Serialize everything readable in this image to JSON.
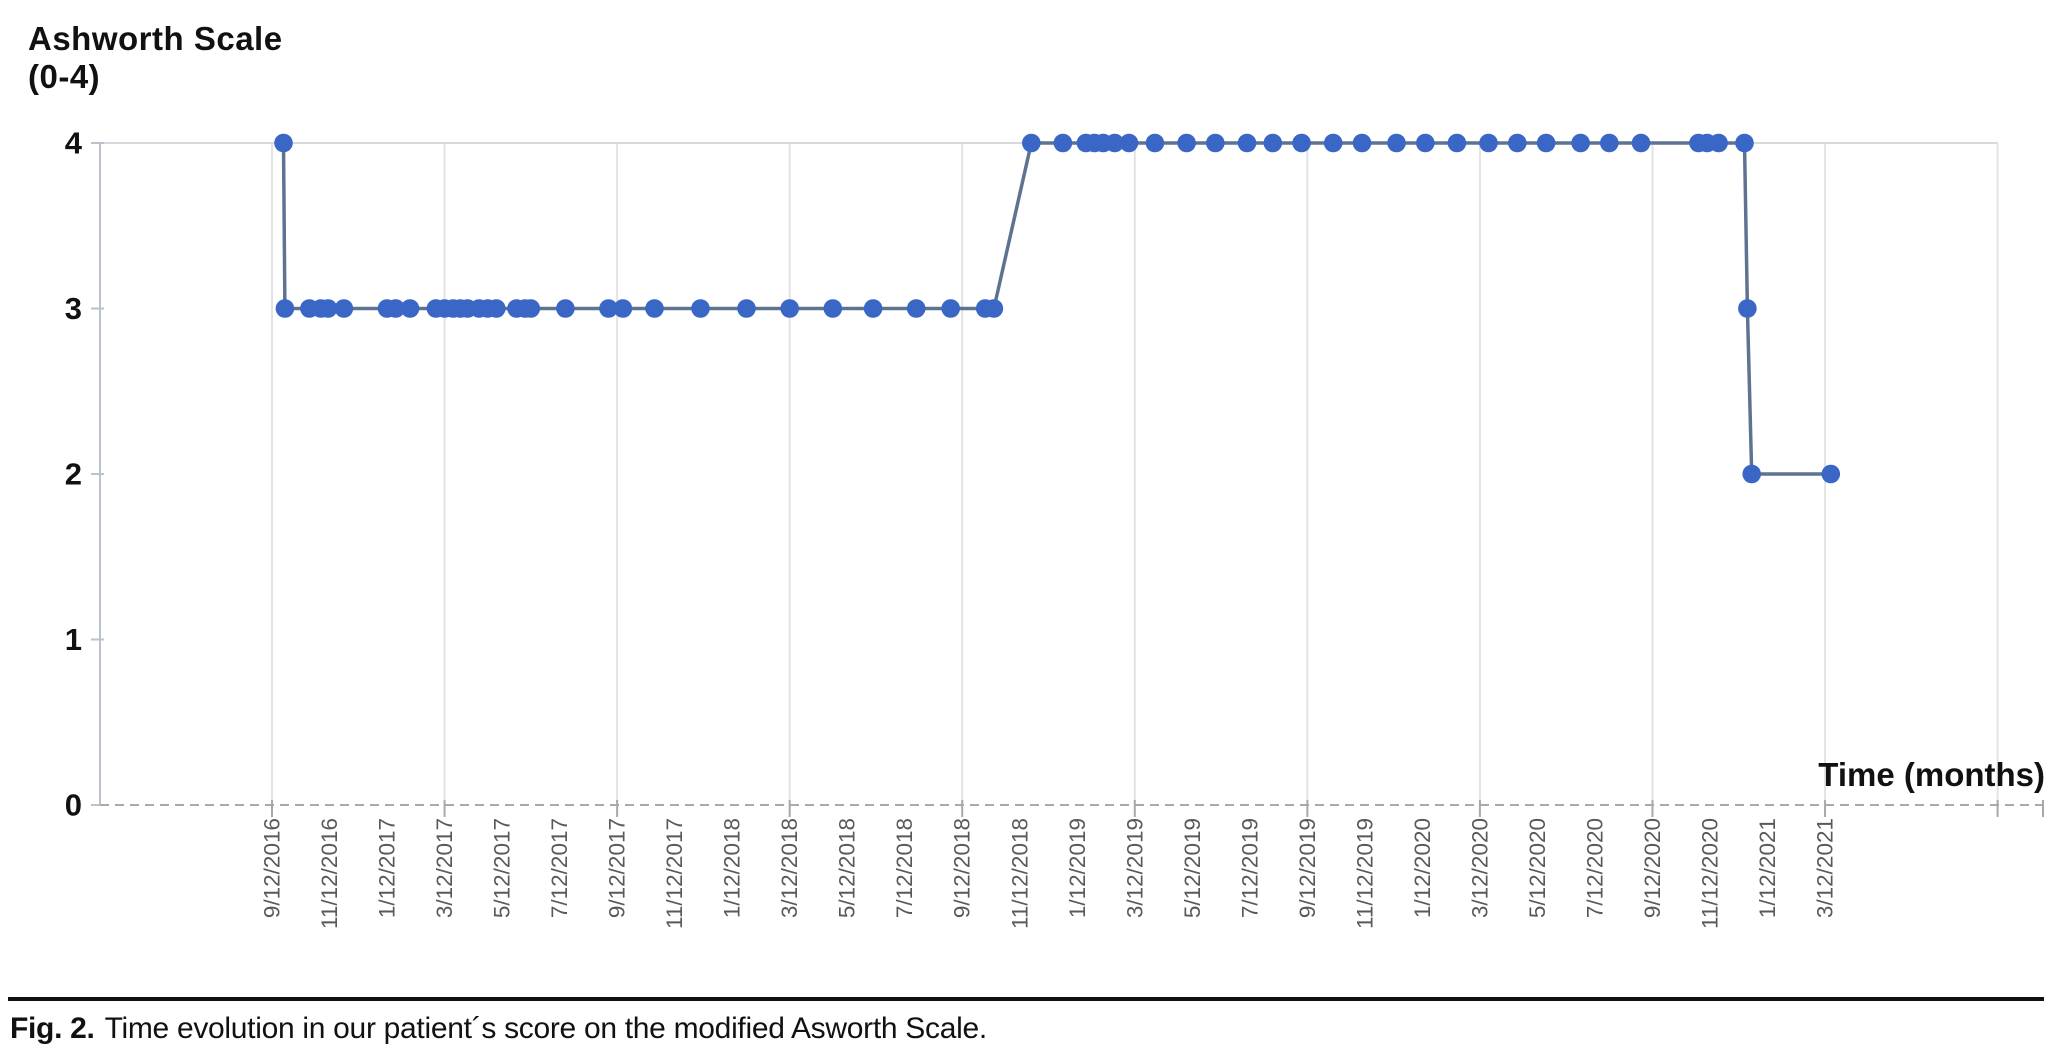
{
  "figure": {
    "caption_label": "Fig. 2.",
    "caption_text": "Time evolution in our patient´s score on the modified Asworth Scale."
  },
  "chart_data": {
    "type": "line",
    "title": "Ashworth Scale",
    "title_sub": "(0-4)",
    "xlabel": "Time (months)",
    "ylabel": "Ashworth Scale (0-4)",
    "ylim": [
      0,
      4
    ],
    "y_ticks": [
      0,
      1,
      2,
      3,
      4
    ],
    "grid": "vertical gridlines every 6 months; horizontal line at y=4; dashed baseline at y=0",
    "legend": "none",
    "x_tick_labels": [
      "9/12/2016",
      "11/12/2016",
      "1/12/2017",
      "3/12/2017",
      "5/12/2017",
      "7/12/2017",
      "9/12/2017",
      "11/12/2017",
      "1/12/2018",
      "3/12/2018",
      "5/12/2018",
      "7/12/2018",
      "9/12/2018",
      "11/12/2018",
      "1/12/2019",
      "3/12/2019",
      "5/12/2019",
      "7/12/2019",
      "9/12/2019",
      "11/12/2019",
      "1/12/2020",
      "3/12/2020",
      "5/12/2020",
      "7/12/2020",
      "9/12/2020",
      "11/12/2020",
      "1/12/2021",
      "3/12/2021"
    ],
    "x_months_per_tick": 2,
    "x_months_range": [
      0,
      54.2
    ],
    "series": [
      {
        "name": "Modified Ashworth Scale score",
        "points_months_vs_score": [
          [
            0.4,
            4
          ],
          [
            0.45,
            3
          ],
          [
            1.3,
            3
          ],
          [
            1.7,
            3
          ],
          [
            1.95,
            3
          ],
          [
            2.5,
            3
          ],
          [
            4.0,
            3
          ],
          [
            4.3,
            3
          ],
          [
            4.8,
            3
          ],
          [
            5.7,
            3
          ],
          [
            6.0,
            3
          ],
          [
            6.3,
            3
          ],
          [
            6.55,
            3
          ],
          [
            6.8,
            3
          ],
          [
            7.2,
            3
          ],
          [
            7.5,
            3
          ],
          [
            7.8,
            3
          ],
          [
            8.5,
            3
          ],
          [
            8.8,
            3
          ],
          [
            9.0,
            3
          ],
          [
            10.2,
            3
          ],
          [
            11.7,
            3
          ],
          [
            12.2,
            3
          ],
          [
            13.3,
            3
          ],
          [
            14.9,
            3
          ],
          [
            16.5,
            3
          ],
          [
            18.0,
            3
          ],
          [
            19.5,
            3
          ],
          [
            20.9,
            3
          ],
          [
            22.4,
            3
          ],
          [
            23.6,
            3
          ],
          [
            24.8,
            3
          ],
          [
            25.1,
            3
          ],
          [
            26.4,
            4
          ],
          [
            27.5,
            4
          ],
          [
            28.3,
            4
          ],
          [
            28.6,
            4
          ],
          [
            28.9,
            4
          ],
          [
            29.3,
            4
          ],
          [
            29.8,
            4
          ],
          [
            30.7,
            4
          ],
          [
            31.8,
            4
          ],
          [
            32.8,
            4
          ],
          [
            33.9,
            4
          ],
          [
            34.8,
            4
          ],
          [
            35.8,
            4
          ],
          [
            36.9,
            4
          ],
          [
            37.9,
            4
          ],
          [
            39.1,
            4
          ],
          [
            40.1,
            4
          ],
          [
            41.2,
            4
          ],
          [
            42.3,
            4
          ],
          [
            43.3,
            4
          ],
          [
            44.3,
            4
          ],
          [
            45.5,
            4
          ],
          [
            46.5,
            4
          ],
          [
            47.6,
            4
          ],
          [
            49.6,
            4
          ],
          [
            49.9,
            4
          ],
          [
            50.3,
            4
          ],
          [
            51.2,
            4
          ],
          [
            51.3,
            3
          ],
          [
            51.45,
            2
          ],
          [
            54.2,
            2
          ]
        ]
      }
    ],
    "colors": {
      "marker": "#3a67c6",
      "line": "#5d7390",
      "gridline": "#e3e3e3",
      "top_gridline": "#d9d9d9",
      "axis": "#b9c2ce",
      "baseline_dashed": "#a9a9a9",
      "tick_label": "#595959",
      "text": "#111111"
    }
  }
}
